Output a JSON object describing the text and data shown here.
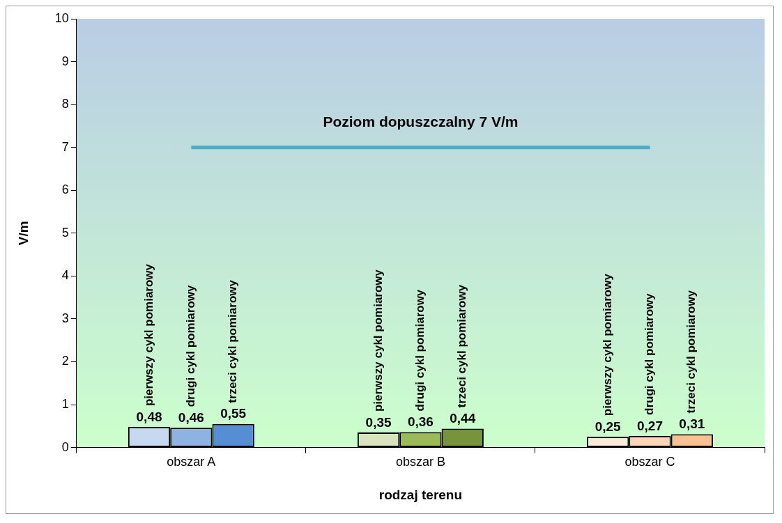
{
  "chart_data": {
    "type": "bar",
    "xlabel": "rodzaj terenu",
    "ylabel": "V/m",
    "categories": [
      "obszar A",
      "obszar B",
      "obszar C"
    ],
    "series": [
      {
        "name": "pierwszy cykl pomiarowy",
        "colors": [
          "#c6d9f1",
          "#d7e4bd",
          "#fde9d9"
        ],
        "values": [
          0.48,
          0.35,
          0.25
        ],
        "value_labels": [
          "0,48",
          "0,35",
          "0,25"
        ]
      },
      {
        "name": "drugi cykl pomiarowy",
        "colors": [
          "#8db3e2",
          "#9bbb59",
          "#fcd5b5"
        ],
        "values": [
          0.46,
          0.36,
          0.27
        ],
        "value_labels": [
          "0,46",
          "0,36",
          "0,27"
        ]
      },
      {
        "name": "trzeci cykl pomiarowy",
        "colors": [
          "#558ed5",
          "#77933c",
          "#fac090"
        ],
        "values": [
          0.55,
          0.44,
          0.31
        ],
        "value_labels": [
          "0,55",
          "0,44",
          "0,31"
        ]
      }
    ],
    "ylim": [
      0,
      10
    ],
    "yticks": [
      0,
      1,
      2,
      3,
      4,
      5,
      6,
      7,
      8,
      9,
      10
    ],
    "ref_lines": [
      {
        "axis": "y",
        "value": 7,
        "label": "Poziom dopuszczalny 7 V/m",
        "color": "#4bacc6"
      }
    ],
    "grid": false,
    "legend": false
  }
}
